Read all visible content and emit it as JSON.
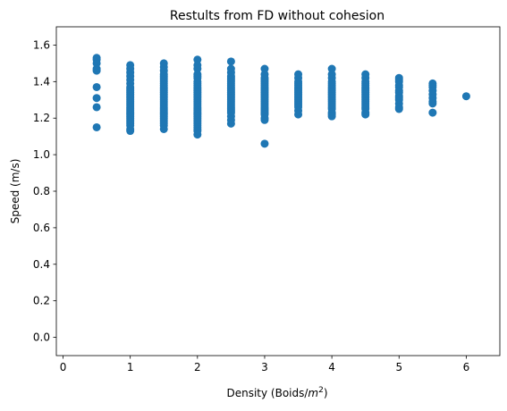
{
  "chart_data": {
    "type": "scatter",
    "title": "Restults from FD without cohesion",
    "xlabel_prefix": "Density (Boids/",
    "xlabel_unit_base": "m",
    "xlabel_unit_exp": "2",
    "xlabel_suffix": ")",
    "ylabel": "Speed (m/s)",
    "xlim": [
      -0.1,
      6.5
    ],
    "ylim": [
      -0.1,
      1.7
    ],
    "xticks": [
      0,
      1,
      2,
      3,
      4,
      5,
      6
    ],
    "yticks": [
      0.0,
      0.2,
      0.4,
      0.6,
      0.8,
      1.0,
      1.2,
      1.4,
      1.6
    ],
    "yticklabels": [
      "0.0",
      "0.2",
      "0.4",
      "0.6",
      "0.8",
      "1.0",
      "1.2",
      "1.4",
      "1.6"
    ],
    "grid": false,
    "marker_color": "#1f77b4",
    "series": [
      {
        "x": [
          0.5,
          0.5,
          0.5,
          0.5,
          0.5,
          0.5,
          0.5,
          0.5,
          0.5,
          1,
          1,
          1,
          1,
          1,
          1,
          1,
          1,
          1,
          1,
          1,
          1,
          1,
          1,
          1,
          1,
          1,
          1,
          1,
          1,
          1,
          1,
          1,
          1,
          1,
          1,
          1,
          1,
          1,
          1,
          1.5,
          1.5,
          1.5,
          1.5,
          1.5,
          1.5,
          1.5,
          1.5,
          1.5,
          1.5,
          1.5,
          1.5,
          1.5,
          1.5,
          1.5,
          1.5,
          1.5,
          1.5,
          1.5,
          1.5,
          1.5,
          1.5,
          1.5,
          1.5,
          1.5,
          1.5,
          1.5,
          1.5,
          1.5,
          1.5,
          1.5,
          1.5,
          1.5,
          2,
          2,
          2,
          2,
          2,
          2,
          2,
          2,
          2,
          2,
          2,
          2,
          2,
          2,
          2,
          2,
          2,
          2,
          2,
          2,
          2,
          2,
          2,
          2,
          2,
          2,
          2,
          2,
          2,
          2,
          2,
          2,
          2,
          2,
          2,
          2.5,
          2.5,
          2.5,
          2.5,
          2.5,
          2.5,
          2.5,
          2.5,
          2.5,
          2.5,
          2.5,
          2.5,
          2.5,
          2.5,
          2.5,
          2.5,
          2.5,
          2.5,
          2.5,
          2.5,
          2.5,
          2.5,
          2.5,
          2.5,
          2.5,
          2.5,
          2.5,
          3,
          3,
          3,
          3,
          3,
          3,
          3,
          3,
          3,
          3,
          3,
          3,
          3,
          3,
          3,
          3,
          3,
          3,
          3,
          3,
          3,
          3,
          3,
          3,
          3,
          3,
          3.5,
          3.5,
          3.5,
          3.5,
          3.5,
          3.5,
          3.5,
          3.5,
          3.5,
          3.5,
          3.5,
          3.5,
          3.5,
          3.5,
          3.5,
          3.5,
          3.5,
          3.5,
          3.5,
          4,
          4,
          4,
          4,
          4,
          4,
          4,
          4,
          4,
          4,
          4,
          4,
          4,
          4,
          4,
          4,
          4,
          4,
          4,
          4,
          4,
          4,
          4.5,
          4.5,
          4.5,
          4.5,
          4.5,
          4.5,
          4.5,
          4.5,
          4.5,
          4.5,
          4.5,
          4.5,
          4.5,
          4.5,
          4.5,
          4.5,
          4.5,
          4.5,
          4.5,
          4.5,
          5,
          5,
          5,
          5,
          5,
          5,
          5,
          5,
          5,
          5,
          5,
          5,
          5,
          5.5,
          5.5,
          5.5,
          5.5,
          5.5,
          5.5,
          5.5,
          5.5,
          5.5,
          6
        ],
        "y": [
          1.53,
          1.52,
          1.5,
          1.47,
          1.46,
          1.37,
          1.31,
          1.26,
          1.15,
          1.49,
          1.47,
          1.45,
          1.43,
          1.41,
          1.39,
          1.37,
          1.36,
          1.35,
          1.34,
          1.33,
          1.32,
          1.31,
          1.3,
          1.29,
          1.28,
          1.27,
          1.26,
          1.25,
          1.24,
          1.23,
          1.22,
          1.21,
          1.2,
          1.19,
          1.18,
          1.17,
          1.16,
          1.14,
          1.13,
          1.5,
          1.48,
          1.46,
          1.44,
          1.43,
          1.42,
          1.41,
          1.4,
          1.39,
          1.38,
          1.37,
          1.36,
          1.35,
          1.34,
          1.33,
          1.32,
          1.31,
          1.3,
          1.29,
          1.28,
          1.27,
          1.26,
          1.25,
          1.24,
          1.23,
          1.22,
          1.21,
          1.2,
          1.19,
          1.18,
          1.17,
          1.16,
          1.14,
          1.52,
          1.49,
          1.47,
          1.44,
          1.43,
          1.42,
          1.4,
          1.39,
          1.38,
          1.37,
          1.36,
          1.35,
          1.34,
          1.33,
          1.32,
          1.31,
          1.3,
          1.29,
          1.28,
          1.27,
          1.26,
          1.25,
          1.24,
          1.23,
          1.22,
          1.21,
          1.2,
          1.19,
          1.18,
          1.17,
          1.16,
          1.15,
          1.14,
          1.13,
          1.11,
          1.51,
          1.47,
          1.45,
          1.43,
          1.42,
          1.41,
          1.4,
          1.39,
          1.38,
          1.37,
          1.36,
          1.35,
          1.34,
          1.33,
          1.32,
          1.31,
          1.3,
          1.29,
          1.28,
          1.27,
          1.26,
          1.25,
          1.24,
          1.23,
          1.21,
          1.19,
          1.17,
          1.47,
          1.44,
          1.42,
          1.41,
          1.4,
          1.39,
          1.38,
          1.37,
          1.36,
          1.35,
          1.34,
          1.33,
          1.32,
          1.31,
          1.3,
          1.29,
          1.28,
          1.27,
          1.26,
          1.25,
          1.24,
          1.23,
          1.22,
          1.2,
          1.19,
          1.06,
          1.44,
          1.42,
          1.4,
          1.39,
          1.38,
          1.37,
          1.36,
          1.35,
          1.34,
          1.33,
          1.32,
          1.31,
          1.3,
          1.29,
          1.28,
          1.27,
          1.26,
          1.24,
          1.22,
          1.47,
          1.44,
          1.42,
          1.4,
          1.39,
          1.38,
          1.37,
          1.36,
          1.35,
          1.34,
          1.33,
          1.32,
          1.31,
          1.3,
          1.29,
          1.28,
          1.27,
          1.26,
          1.25,
          1.23,
          1.22,
          1.21,
          1.44,
          1.42,
          1.4,
          1.39,
          1.38,
          1.37,
          1.36,
          1.35,
          1.34,
          1.33,
          1.32,
          1.31,
          1.3,
          1.29,
          1.28,
          1.27,
          1.26,
          1.25,
          1.23,
          1.22,
          1.42,
          1.41,
          1.4,
          1.38,
          1.37,
          1.35,
          1.34,
          1.32,
          1.31,
          1.3,
          1.28,
          1.26,
          1.25,
          1.39,
          1.38,
          1.37,
          1.35,
          1.33,
          1.31,
          1.29,
          1.28,
          1.23,
          1.32
        ]
      }
    ]
  }
}
